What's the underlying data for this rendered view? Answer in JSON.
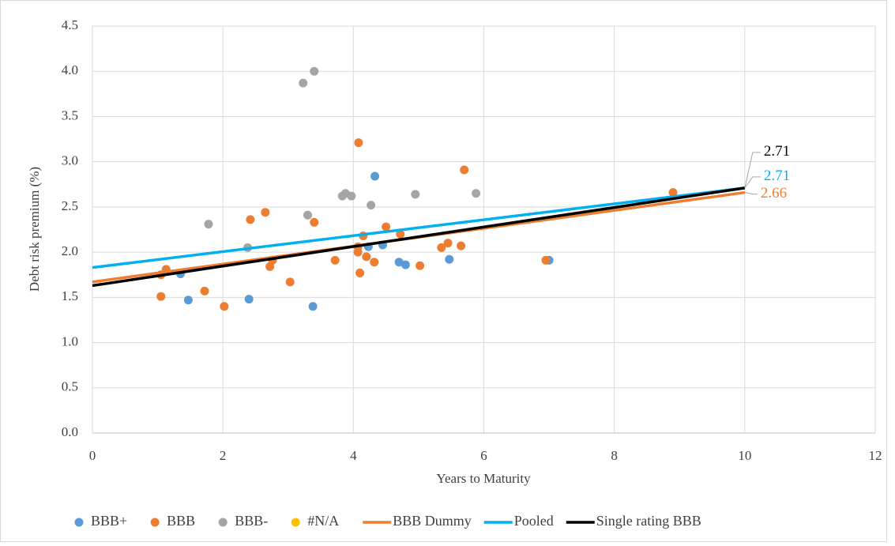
{
  "chart_data": {
    "type": "scatter",
    "xlabel": "Years to Maturity",
    "ylabel": "Debt risk premium (%)",
    "xlim": [
      0,
      12
    ],
    "xticks": [
      0,
      2,
      4,
      6,
      8,
      10,
      12
    ],
    "ylim": [
      0,
      4.5
    ],
    "yticks": [
      {
        "value": 0,
        "label": "0.0"
      },
      0.5,
      {
        "value": 1,
        "label": "1.0"
      },
      1.5,
      {
        "value": 2,
        "label": "2.0"
      },
      2.5,
      {
        "value": 3,
        "label": "3.0"
      },
      3.5,
      {
        "value": 4,
        "label": "4.0"
      },
      4.5
    ],
    "grid": true,
    "legend": "bottom",
    "series": [
      {
        "name": "BBB+",
        "mark": "point",
        "color": "#5b9bd5",
        "x": [
          1.35,
          1.47,
          2.4,
          3.38,
          4.23,
          4.33,
          4.45,
          4.7,
          4.8,
          5.47,
          7.0
        ],
        "values": [
          1.76,
          1.47,
          1.48,
          1.4,
          2.06,
          2.84,
          2.08,
          1.89,
          1.86,
          1.92,
          1.91
        ]
      },
      {
        "name": "BBB",
        "mark": "point",
        "color": "#ed7d31",
        "x": [
          1.05,
          1.05,
          1.13,
          1.72,
          2.02,
          2.42,
          2.65,
          2.72,
          2.76,
          3.03,
          3.4,
          3.72,
          4.07,
          4.07,
          4.08,
          4.1,
          4.15,
          4.2,
          4.32,
          4.5,
          4.72,
          5.02,
          5.35,
          5.45,
          5.65,
          5.7,
          6.95,
          8.9
        ],
        "values": [
          1.75,
          1.51,
          1.81,
          1.57,
          1.4,
          2.36,
          2.44,
          1.84,
          1.91,
          1.67,
          2.33,
          1.91,
          2.0,
          2.06,
          3.21,
          1.77,
          2.18,
          1.95,
          1.89,
          2.28,
          2.2,
          1.85,
          2.05,
          2.1,
          2.07,
          2.91,
          1.91,
          2.66
        ]
      },
      {
        "name": "BBB-",
        "mark": "point",
        "color": "#a5a5a5",
        "x": [
          1.78,
          2.38,
          3.23,
          3.3,
          3.4,
          3.83,
          3.88,
          3.97,
          4.27,
          4.95,
          5.88
        ],
        "values": [
          2.31,
          2.05,
          3.87,
          2.41,
          4.0,
          2.62,
          2.65,
          2.62,
          2.52,
          2.64,
          2.65
        ]
      },
      {
        "name": "#N/A",
        "mark": "point",
        "color": "#ffc000",
        "x": [],
        "values": []
      },
      {
        "name": "BBB Dummy",
        "mark": "line",
        "color": "#ed7d31",
        "x": [
          0,
          10
        ],
        "values": [
          1.67,
          2.66
        ]
      },
      {
        "name": "Pooled",
        "mark": "line",
        "color": "#00b0f0",
        "x": [
          0,
          10
        ],
        "values": [
          1.83,
          2.71
        ]
      },
      {
        "name": "Single rating BBB",
        "mark": "line",
        "color": "#000000",
        "x": [
          0,
          10
        ],
        "values": [
          1.63,
          2.71
        ]
      }
    ]
  }
}
